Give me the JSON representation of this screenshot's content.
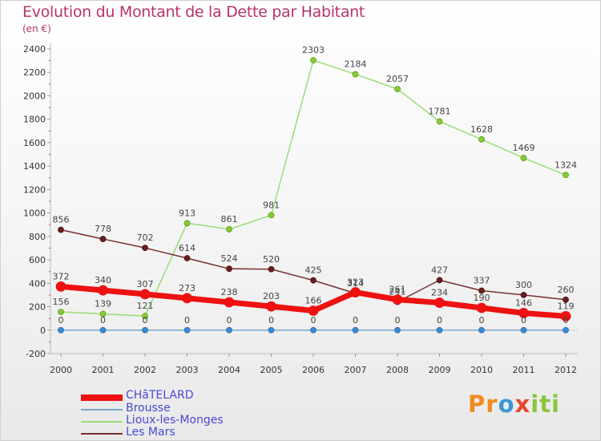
{
  "header": {
    "title": "Evolution du Montant de la Dette par Habitant",
    "subtitle": "(en €)"
  },
  "logo": {
    "text": "Proxiti"
  },
  "chart_data": {
    "type": "line",
    "title": "Evolution du Montant de la Dette par Habitant",
    "subtitle": "(en €)",
    "x": [
      "2000",
      "2001",
      "2002",
      "2003",
      "2004",
      "2005",
      "2006",
      "2007",
      "2008",
      "2009",
      "2010",
      "2011",
      "2012"
    ],
    "ylim": [
      -200,
      2400
    ],
    "yticks": [
      -200,
      0,
      200,
      400,
      600,
      800,
      1000,
      1200,
      1400,
      1600,
      1800,
      2000,
      2200,
      2400
    ],
    "grid": false,
    "legend_position": "bottom-left",
    "series": [
      {
        "name": "CHâTELARD",
        "color": "#ee1111",
        "values": [
          372,
          340,
          307,
          273,
          238,
          203,
          166,
          323,
          261,
          234,
          190,
          146,
          119
        ]
      },
      {
        "name": "Brousse",
        "color": "#7aa6cf",
        "values": [
          0,
          0,
          0,
          0,
          0,
          0,
          0,
          0,
          0,
          0,
          0,
          0,
          0
        ]
      },
      {
        "name": "Lioux-les-Monges",
        "color": "#99dd77",
        "values": [
          156,
          139,
          121,
          913,
          861,
          981,
          2303,
          2184,
          2057,
          1781,
          1628,
          1469,
          1324
        ]
      },
      {
        "name": "Les Mars",
        "color": "#7a2f2f",
        "values": [
          856,
          778,
          702,
          614,
          524,
          520,
          425,
          314,
          241,
          427,
          337,
          300,
          260
        ]
      }
    ]
  }
}
